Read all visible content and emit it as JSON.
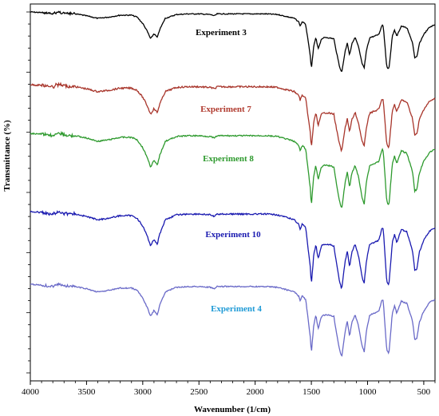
{
  "chart_data": {
    "type": "line",
    "title": "",
    "xlabel": "Wavenumber (1/cm)",
    "ylabel": "Transmittance (%)",
    "xlim": [
      4000,
      400
    ],
    "x_reversed": true,
    "x_ticks": [
      4000,
      3500,
      3000,
      2500,
      2000,
      1500,
      1000,
      500
    ],
    "y_tick_labels_shown": false,
    "grid": false,
    "legend": "none",
    "colors": {
      "Experiment 3": "#000000",
      "Experiment 7": "#a8352b",
      "Experiment 8": "#2e9a2e",
      "Experiment 10": "#1a1ab0",
      "Experiment 4": "#6a6ac8"
    },
    "label_colors": {
      "Experiment 3": "#000000",
      "Experiment 7": "#b03a2e",
      "Experiment 8": "#2e9a2e",
      "Experiment 10": "#1a1ab0",
      "Experiment 4": "#1e9ad6"
    },
    "series": [
      {
        "name": "Experiment 3"
      },
      {
        "name": "Experiment 7"
      },
      {
        "name": "Experiment 8"
      },
      {
        "name": "Experiment 10"
      },
      {
        "name": "Experiment 4"
      }
    ],
    "spectrum_x": [
      4000,
      3900,
      3800,
      3750,
      3700,
      3600,
      3500,
      3400,
      3300,
      3200,
      3100,
      3050,
      3000,
      2960,
      2930,
      2900,
      2870,
      2850,
      2800,
      2700,
      2600,
      2500,
      2400,
      2360,
      2340,
      2300,
      2200,
      2100,
      2000,
      1900,
      1800,
      1700,
      1650,
      1610,
      1600,
      1580,
      1550,
      1510,
      1500,
      1480,
      1460,
      1440,
      1410,
      1380,
      1360,
      1300,
      1280,
      1250,
      1230,
      1200,
      1180,
      1160,
      1140,
      1110,
      1080,
      1050,
      1030,
      1010,
      980,
      940,
      900,
      870,
      860,
      830,
      810,
      780,
      760,
      740,
      700,
      650,
      600,
      580,
      560,
      540,
      500,
      450,
      400
    ],
    "spectrum_depth": [
      0.0,
      0.01,
      0.03,
      0.0,
      0.02,
      0.03,
      0.06,
      0.1,
      0.08,
      0.05,
      0.05,
      0.08,
      0.18,
      0.3,
      0.42,
      0.34,
      0.4,
      0.28,
      0.1,
      0.04,
      0.03,
      0.03,
      0.04,
      0.06,
      0.03,
      0.03,
      0.03,
      0.03,
      0.03,
      0.03,
      0.04,
      0.08,
      0.1,
      0.16,
      0.22,
      0.15,
      0.2,
      0.68,
      0.9,
      0.55,
      0.4,
      0.58,
      0.42,
      0.4,
      0.4,
      0.42,
      0.6,
      0.85,
      0.95,
      0.62,
      0.48,
      0.68,
      0.5,
      0.4,
      0.55,
      0.8,
      0.88,
      0.6,
      0.4,
      0.38,
      0.35,
      0.2,
      0.22,
      0.85,
      0.9,
      0.38,
      0.28,
      0.38,
      0.22,
      0.25,
      0.48,
      0.72,
      0.7,
      0.5,
      0.35,
      0.24,
      0.2
    ],
    "y_axis_minor_ticks": 30
  }
}
